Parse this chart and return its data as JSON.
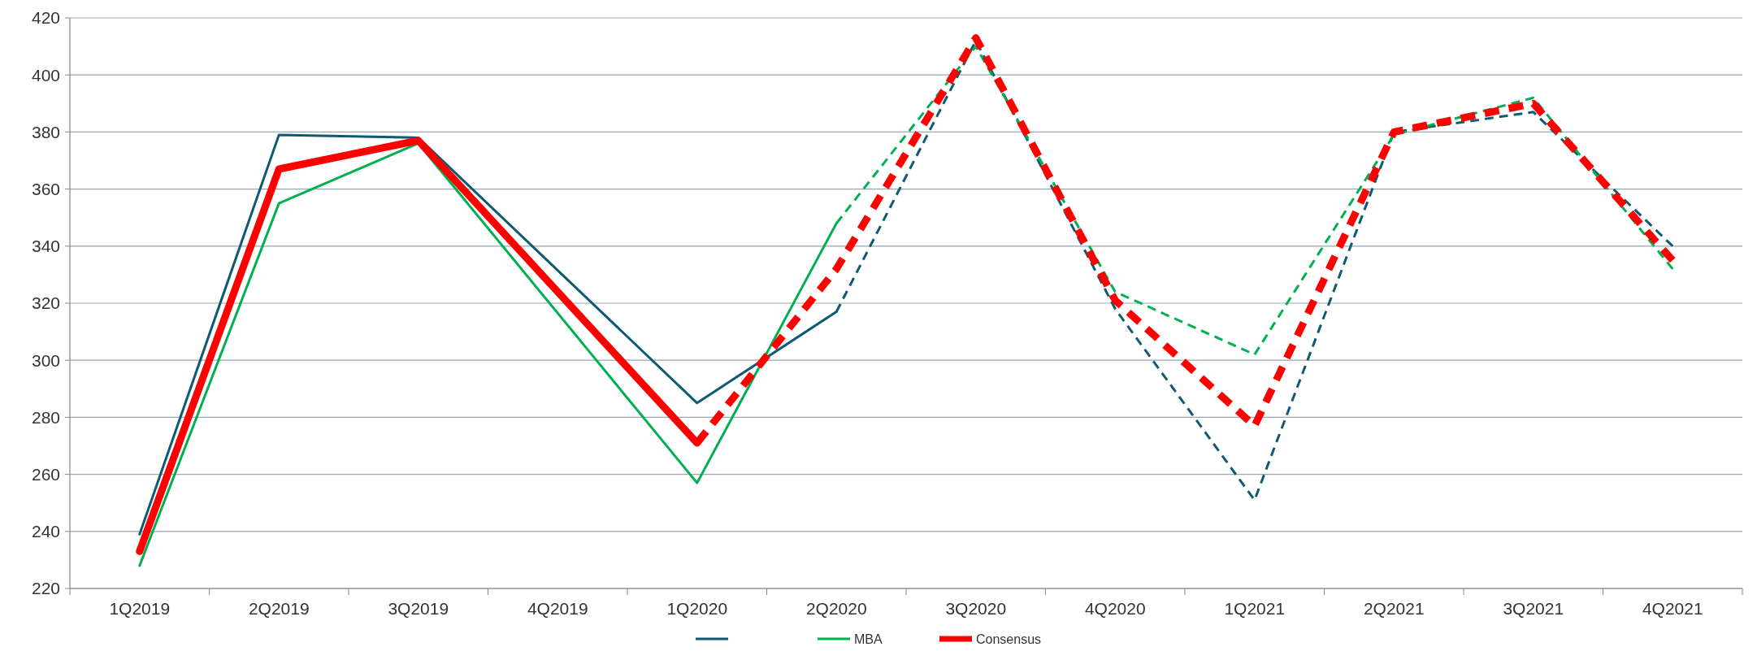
{
  "chart_data": {
    "type": "line",
    "categories": [
      "1Q2019",
      "2Q2019",
      "3Q2019",
      "4Q2019",
      "1Q2020",
      "2Q2020",
      "3Q2020",
      "4Q2020",
      "1Q2021",
      "2Q2021",
      "3Q2021",
      "4Q2021"
    ],
    "series": [
      {
        "color": "#0e5a73",
        "line_style": "solid",
        "values": [
          239,
          379,
          378,
          null,
          285,
          317,
          null,
          null,
          null,
          null,
          null,
          null
        ]
      },
      {
        "color": "#0e5a73",
        "line_style": "dashed",
        "values": [
          null,
          null,
          null,
          null,
          null,
          317,
          412,
          318,
          251,
          380,
          387,
          340
        ]
      },
      {
        "name": "MBA",
        "color": "#00b050",
        "line_style": "solid",
        "values": [
          228,
          355,
          376,
          null,
          257,
          348,
          null,
          null,
          null,
          null,
          null,
          null
        ]
      },
      {
        "color": "#00b050",
        "line_style": "dashed",
        "values": [
          null,
          null,
          null,
          null,
          null,
          348,
          410,
          324,
          302,
          379,
          392,
          332
        ]
      },
      {
        "name": "Consensus",
        "color": "#ff0000",
        "line_style": "solid",
        "values": [
          233,
          367,
          377,
          null,
          271,
          null,
          null,
          null,
          null,
          null,
          null,
          null
        ]
      },
      {
        "color": "#ff0000",
        "line_style": "dashed",
        "values": [
          null,
          null,
          null,
          null,
          271,
          332,
          413,
          321,
          277,
          380,
          390,
          335
        ]
      }
    ],
    "ylim": [
      220,
      420
    ],
    "yticks": [
      220,
      240,
      260,
      280,
      300,
      320,
      340,
      360,
      380,
      400,
      420
    ],
    "grid": "y",
    "legend": "bottom"
  }
}
